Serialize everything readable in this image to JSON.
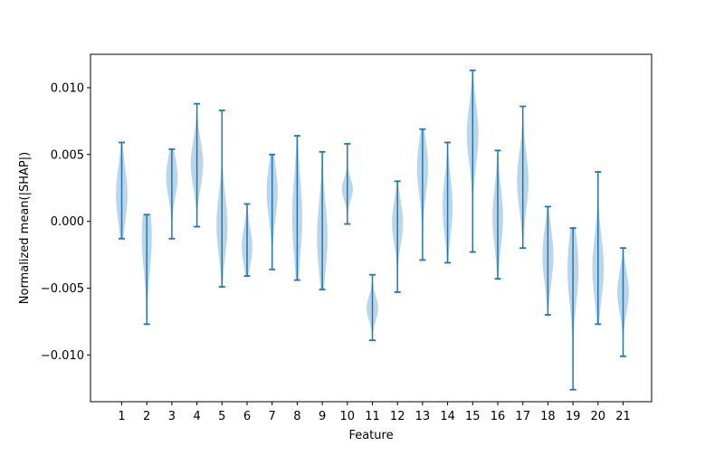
{
  "chart_data": {
    "type": "violin",
    "title": "",
    "xlabel": "Feature",
    "ylabel": "Normalized mean(|SHAP|)",
    "ylim": [
      -0.0135,
      0.0125
    ],
    "y_ticks": [
      {
        "value": 0.01,
        "label": "0.010"
      },
      {
        "value": 0.005,
        "label": "0.005"
      },
      {
        "value": 0.0,
        "label": "0.000"
      },
      {
        "value": -0.005,
        "label": "−0.005"
      },
      {
        "value": -0.01,
        "label": "−0.010"
      }
    ],
    "categories": [
      "1",
      "2",
      "3",
      "4",
      "5",
      "6",
      "7",
      "8",
      "9",
      "10",
      "11",
      "12",
      "13",
      "14",
      "15",
      "16",
      "17",
      "18",
      "19",
      "20",
      "21"
    ],
    "violins": [
      {
        "min": -0.0013,
        "max": 0.0059,
        "center": 0.002,
        "spread": 0.002,
        "width": 0.46
      },
      {
        "min": -0.0077,
        "max": 0.0005,
        "center": -0.0012,
        "spread": 0.0025,
        "width": 0.4
      },
      {
        "min": -0.0013,
        "max": 0.0054,
        "center": 0.0033,
        "spread": 0.0015,
        "width": 0.46
      },
      {
        "min": -0.0004,
        "max": 0.0088,
        "center": 0.0043,
        "spread": 0.0017,
        "width": 0.5
      },
      {
        "min": -0.0049,
        "max": 0.0083,
        "center": -0.0003,
        "spread": 0.0022,
        "width": 0.44
      },
      {
        "min": -0.0041,
        "max": 0.0013,
        "center": -0.0019,
        "spread": 0.0014,
        "width": 0.42
      },
      {
        "min": -0.0036,
        "max": 0.005,
        "center": 0.0022,
        "spread": 0.002,
        "width": 0.44
      },
      {
        "min": -0.0044,
        "max": 0.0064,
        "center": 0.0003,
        "spread": 0.003,
        "width": 0.4
      },
      {
        "min": -0.0051,
        "max": 0.0052,
        "center": -0.0012,
        "spread": 0.0026,
        "width": 0.42
      },
      {
        "min": -0.0002,
        "max": 0.0058,
        "center": 0.0024,
        "spread": 0.0008,
        "width": 0.44
      },
      {
        "min": -0.0089,
        "max": -0.004,
        "center": -0.0065,
        "spread": 0.0009,
        "width": 0.46
      },
      {
        "min": -0.0053,
        "max": 0.003,
        "center": -0.0001,
        "spread": 0.0016,
        "width": 0.44
      },
      {
        "min": -0.0029,
        "max": 0.0069,
        "center": 0.004,
        "spread": 0.002,
        "width": 0.44
      },
      {
        "min": -0.0031,
        "max": 0.0059,
        "center": 0.0011,
        "spread": 0.0021,
        "width": 0.4
      },
      {
        "min": -0.0023,
        "max": 0.0113,
        "center": 0.0065,
        "spread": 0.0022,
        "width": 0.46
      },
      {
        "min": -0.0043,
        "max": 0.0053,
        "center": 0.0003,
        "spread": 0.0022,
        "width": 0.42
      },
      {
        "min": -0.002,
        "max": 0.0086,
        "center": 0.003,
        "spread": 0.0021,
        "width": 0.46
      },
      {
        "min": -0.007,
        "max": 0.0011,
        "center": -0.0026,
        "spread": 0.002,
        "width": 0.44
      },
      {
        "min": -0.0126,
        "max": -0.0005,
        "center": -0.0036,
        "spread": 0.0025,
        "width": 0.44
      },
      {
        "min": -0.0077,
        "max": 0.0037,
        "center": -0.0035,
        "spread": 0.0023,
        "width": 0.46
      },
      {
        "min": -0.0101,
        "max": -0.002,
        "center": -0.0053,
        "spread": 0.0015,
        "width": 0.46
      }
    ],
    "grid": false,
    "legend": "none",
    "colors": {
      "body": "#1f77b4",
      "body_opacity": 0.3,
      "lines": "#1f77b4",
      "axes": "#000000"
    }
  }
}
